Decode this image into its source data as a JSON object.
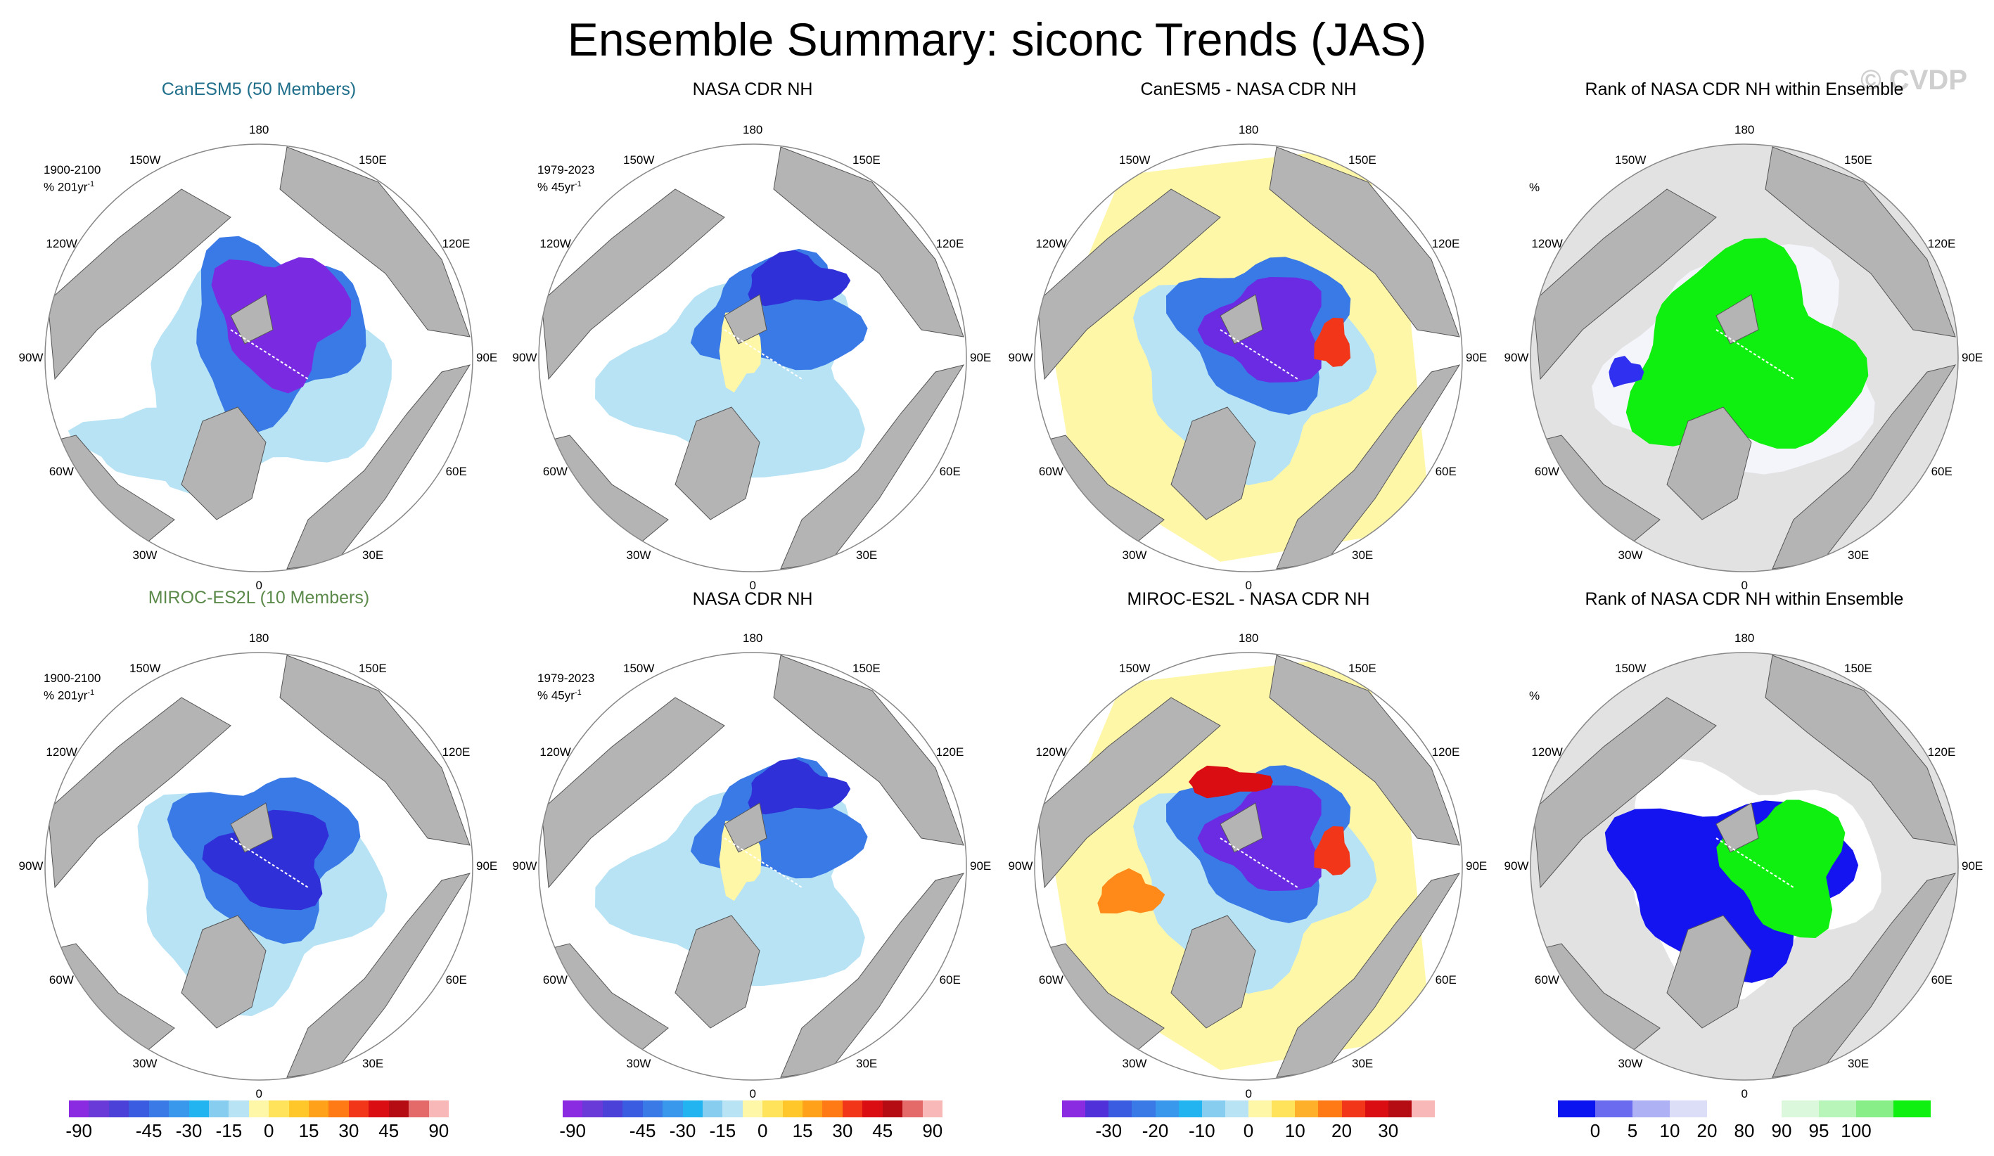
{
  "title": "Ensemble Summary: siconc Trends (JAS)",
  "watermark": "© CVDP",
  "chart_data": {
    "type": "heatmap",
    "projection": "north-polar-stereographic",
    "variable": "siconc",
    "season": "JAS",
    "panels": [
      {
        "title": "CanESM5 (50 Members)",
        "period": "1900-2100",
        "units": "% 201yr",
        "units_sup": "-1",
        "field": "model-trend-1",
        "colorbar": "trend"
      },
      {
        "title": "NASA CDR NH",
        "period": "1979-2023",
        "units": "% 45yr",
        "units_sup": "-1",
        "field": "obs-trend",
        "colorbar": "trend"
      },
      {
        "title": "CanESM5 - NASA CDR NH",
        "field": "diff-1",
        "colorbar": "diff"
      },
      {
        "title": "Rank of NASA CDR NH within Ensemble",
        "units": "%",
        "field": "rank-1",
        "colorbar": "rank"
      },
      {
        "title": "MIROC-ES2L (10 Members)",
        "period": "1900-2100",
        "units": "% 201yr",
        "units_sup": "-1",
        "field": "model-trend-2",
        "colorbar": "trend"
      },
      {
        "title": "NASA CDR NH",
        "period": "1979-2023",
        "units": "% 45yr",
        "units_sup": "-1",
        "field": "obs-trend",
        "colorbar": "trend"
      },
      {
        "title": "MIROC-ES2L - NASA CDR NH",
        "field": "diff-2",
        "colorbar": "diff"
      },
      {
        "title": "Rank of NASA CDR NH within Ensemble",
        "units": "%",
        "field": "rank-2",
        "colorbar": "rank"
      }
    ],
    "longitude_labels": [
      "180",
      "150E",
      "120E",
      "90E",
      "60E",
      "30E",
      "0",
      "30W",
      "60W",
      "90W",
      "120W",
      "150W"
    ],
    "colorbars": [
      {
        "name": "trend",
        "colors": [
          "#8a2be2",
          "#6a3ad8",
          "#4b40d8",
          "#3a5ce0",
          "#3a7ae6",
          "#3a98ec",
          "#22b4f0",
          "#86cdf0",
          "#b7e3f5",
          "#fff7a8",
          "#ffe35a",
          "#ffc72a",
          "#ffa21a",
          "#ff7a14",
          "#f2361a",
          "#d90d12",
          "#b40c12",
          "#e46a6a",
          "#f8b8b8"
        ],
        "tick_labels": [
          "-90",
          "-45",
          "-30",
          "-15",
          "0",
          "15",
          "30",
          "45",
          "90"
        ]
      },
      {
        "name": "diff",
        "colors": [
          "#8a2be2",
          "#5030d8",
          "#3a5ce0",
          "#3a7ae6",
          "#3a98ec",
          "#22b4f0",
          "#86cdf0",
          "#b7e3f5",
          "#fff7a8",
          "#ffe35a",
          "#ffb02a",
          "#ff7a14",
          "#f2361a",
          "#d90d12",
          "#b40c12",
          "#f8b8b8"
        ],
        "tick_labels": [
          "-30",
          "-20",
          "-10",
          "0",
          "10",
          "20",
          "30"
        ]
      },
      {
        "name": "rank",
        "colors": [
          "#0a14f0",
          "#6b6bf0",
          "#aeb2f4",
          "#dcdef8",
          "#ffffff",
          "#ffffff",
          "#dcf8dc",
          "#b8f5b8",
          "#88ef88",
          "#10f010"
        ],
        "tick_labels": [
          "0",
          "5",
          "10",
          "20",
          "80",
          "90",
          "95",
          "100"
        ]
      }
    ]
  }
}
